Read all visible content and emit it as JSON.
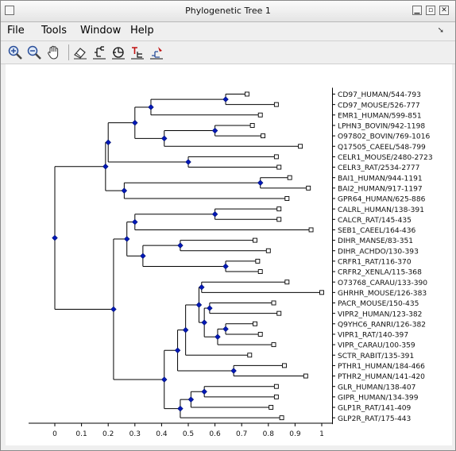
{
  "window": {
    "title": "Phylogenetic Tree 1"
  },
  "menu": [
    "File",
    "Tools",
    "Window",
    "Help"
  ],
  "toolbar": [
    "zoom-in-icon",
    "zoom-out-icon",
    "pan-hand-icon",
    "erase-icon",
    "tree-rectangular-icon",
    "tree-radial-icon",
    "tree-label-icon",
    "tree-color-icon"
  ],
  "colors": {
    "node": "#0018b8",
    "line": "#000000"
  },
  "axis": {
    "ticks": [
      "0",
      "0.1",
      "0.2",
      "0.3",
      "0.4",
      "0.5",
      "0.6",
      "0.7",
      "0.8",
      "0.9",
      "1"
    ]
  },
  "leaves": [
    "CD97_HUMAN/544-793",
    "CD97_MOUSE/526-777",
    "EMR1_HUMAN/599-851",
    "LPHN3_BOVIN/942-1198",
    "O97802_BOVIN/769-1016",
    "Q17505_CAEEL/548-799",
    "CELR1_MOUSE/2480-2723",
    "CELR3_RAT/2534-2777",
    "BAI1_HUMAN/944-1191",
    "BAI2_HUMAN/917-1197",
    "GPR64_HUMAN/625-886",
    "CALRL_HUMAN/138-391",
    "CALCR_RAT/145-435",
    "SEB1_CAEEL/164-436",
    "DIHR_MANSE/83-351",
    "DIHR_ACHDO/130-393",
    "CRFR1_RAT/116-370",
    "CRFR2_XENLA/115-368",
    "O73768_CARAU/133-390",
    "GHRHR_MOUSE/126-383",
    "PACR_MOUSE/150-435",
    "VIPR2_HUMAN/123-382",
    "Q9YHC6_RANRI/126-382",
    "VIPR1_RAT/140-397",
    "VIPR_CARAU/100-359",
    "SCTR_RABIT/135-391",
    "PTHR1_HUMAN/184-466",
    "PTHR2_HUMAN/141-420",
    "GLR_HUMAN/138-407",
    "GIPR_HUMAN/134-399",
    "GLP1R_RAT/141-409",
    "GLP2R_RAT/175-443"
  ],
  "tree": {
    "x": 0,
    "children": [
      {
        "x": 0.19,
        "children": [
          {
            "x": 0.2,
            "children": [
              {
                "x": 0.3,
                "children": [
                  {
                    "x": 0.36,
                    "children": [
                      {
                        "x": 0.64,
                        "children": [
                          {
                            "leaf": 0,
                            "x": 0.72
                          },
                          {
                            "leaf": 1,
                            "x": 0.83
                          }
                        ]
                      },
                      {
                        "leaf": 2,
                        "x": 0.77
                      }
                    ]
                  },
                  {
                    "x": 0.41,
                    "children": [
                      {
                        "x": 0.6,
                        "children": [
                          {
                            "leaf": 3,
                            "x": 0.74
                          },
                          {
                            "leaf": 4,
                            "x": 0.78
                          }
                        ]
                      },
                      {
                        "leaf": 5,
                        "x": 0.92
                      }
                    ]
                  }
                ]
              },
              {
                "x": 0.5,
                "children": [
                  {
                    "leaf": 6,
                    "x": 0.83
                  },
                  {
                    "leaf": 7,
                    "x": 0.84
                  }
                ]
              }
            ]
          },
          {
            "x": 0.26,
            "children": [
              {
                "x": 0.77,
                "children": [
                  {
                    "leaf": 8,
                    "x": 0.88
                  },
                  {
                    "leaf": 9,
                    "x": 0.95
                  }
                ]
              },
              {
                "leaf": 10,
                "x": 0.87
              }
            ]
          }
        ]
      },
      {
        "x": 0.22,
        "children": [
          {
            "x": 0.27,
            "children": [
              {
                "x": 0.3,
                "children": [
                  {
                    "x": 0.6,
                    "children": [
                      {
                        "leaf": 11,
                        "x": 0.84
                      },
                      {
                        "leaf": 12,
                        "x": 0.84
                      }
                    ]
                  },
                  {
                    "leaf": 13,
                    "x": 0.96
                  }
                ]
              },
              {
                "x": 0.33,
                "children": [
                  {
                    "x": 0.47,
                    "children": [
                      {
                        "leaf": 14,
                        "x": 0.75
                      },
                      {
                        "leaf": 15,
                        "x": 0.8
                      }
                    ]
                  },
                  {
                    "x": 0.64,
                    "children": [
                      {
                        "leaf": 16,
                        "x": 0.76
                      },
                      {
                        "leaf": 17,
                        "x": 0.77
                      }
                    ]
                  }
                ]
              }
            ]
          },
          {
            "x": 0.41,
            "children": [
              {
                "x": 0.46,
                "children": [
                  {
                    "x": 0.49,
                    "children": [
                      {
                        "x": 0.54,
                        "children": [
                          {
                            "x": 0.55,
                            "children": [
                              {
                                "leaf": 18,
                                "x": 0.87
                              },
                              {
                                "leaf": 19,
                                "x": 1.0
                              }
                            ]
                          },
                          {
                            "x": 0.56,
                            "children": [
                              {
                                "x": 0.58,
                                "children": [
                                  {
                                    "leaf": 20,
                                    "x": 0.82
                                  },
                                  {
                                    "leaf": 21,
                                    "x": 0.84
                                  }
                                ]
                              },
                              {
                                "x": 0.61,
                                "children": [
                                  {
                                    "x": 0.64,
                                    "children": [
                                      {
                                        "leaf": 22,
                                        "x": 0.75
                                      },
                                      {
                                        "leaf": 23,
                                        "x": 0.77
                                      }
                                    ]
                                  },
                                  {
                                    "leaf": 24,
                                    "x": 0.82
                                  }
                                ]
                              }
                            ]
                          }
                        ]
                      },
                      {
                        "leaf": 25,
                        "x": 0.73
                      }
                    ]
                  },
                  {
                    "x": 0.67,
                    "children": [
                      {
                        "leaf": 26,
                        "x": 0.86
                      },
                      {
                        "leaf": 27,
                        "x": 0.94
                      }
                    ]
                  }
                ]
              },
              {
                "x": 0.47,
                "children": [
                  {
                    "x": 0.51,
                    "children": [
                      {
                        "x": 0.56,
                        "children": [
                          {
                            "leaf": 28,
                            "x": 0.83
                          },
                          {
                            "leaf": 29,
                            "x": 0.83
                          }
                        ]
                      },
                      {
                        "leaf": 30,
                        "x": 0.81
                      }
                    ]
                  },
                  {
                    "leaf": 31,
                    "x": 0.85
                  }
                ]
              }
            ]
          }
        ]
      }
    ]
  }
}
